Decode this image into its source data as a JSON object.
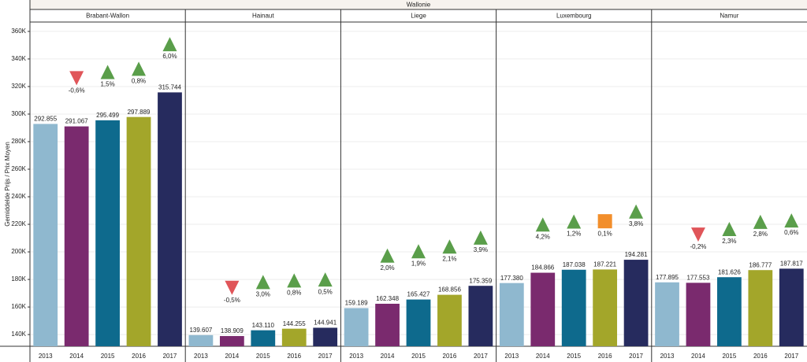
{
  "chart_data": {
    "type": "bar",
    "title": "Wallonie",
    "y_label": "Gemiddelde Prijs / Prix Moyen",
    "ylim": [
      131500,
      366800
    ],
    "yticks": [
      {
        "value": 140000,
        "label": "140K"
      },
      {
        "value": 160000,
        "label": "160K"
      },
      {
        "value": 180000,
        "label": "180K"
      },
      {
        "value": 200000,
        "label": "200K"
      },
      {
        "value": 220000,
        "label": "220K"
      },
      {
        "value": 240000,
        "label": "240K"
      },
      {
        "value": 260000,
        "label": "260K"
      },
      {
        "value": 280000,
        "label": "280K"
      },
      {
        "value": 300000,
        "label": "300K"
      },
      {
        "value": 320000,
        "label": "320K"
      },
      {
        "value": 340000,
        "label": "340K"
      },
      {
        "value": 360000,
        "label": "360K"
      }
    ],
    "grid": true,
    "categories": [
      "2013",
      "2014",
      "2015",
      "2016",
      "2017"
    ],
    "colors": [
      "#8fb8cf",
      "#7a2a6e",
      "#0e6a8d",
      "#a3a62a",
      "#262b5e"
    ],
    "marker_colors": {
      "up": "#5a9e4a",
      "down": "#e05559",
      "flat": "#f28e2b"
    },
    "panels": [
      {
        "name": "Brabant-Wallon",
        "values": [
          292855,
          291067,
          295499,
          297889,
          315744
        ],
        "value_labels": [
          "292.855",
          "291.067",
          "295.499",
          "297.889",
          "315.744"
        ],
        "changes": [
          null,
          -0.6,
          1.5,
          0.8,
          6.0
        ],
        "change_labels": [
          null,
          "-0,6%",
          "1,5%",
          "0,8%",
          "6,0%"
        ],
        "change_shapes": [
          null,
          "down",
          "up",
          "up",
          "up"
        ]
      },
      {
        "name": "Hainaut",
        "values": [
          139607,
          138909,
          143110,
          144255,
          144941
        ],
        "value_labels": [
          "139.607",
          "138.909",
          "143.110",
          "144.255",
          "144.941"
        ],
        "changes": [
          null,
          -0.5,
          3.0,
          0.8,
          0.5
        ],
        "change_labels": [
          null,
          "-0,5%",
          "3,0%",
          "0,8%",
          "0,5%"
        ],
        "change_shapes": [
          null,
          "down",
          "up",
          "up",
          "up"
        ]
      },
      {
        "name": "Liege",
        "values": [
          159189,
          162348,
          165427,
          168856,
          175359
        ],
        "value_labels": [
          "159.189",
          "162.348",
          "165.427",
          "168.856",
          "175.359"
        ],
        "changes": [
          null,
          2.0,
          1.9,
          2.1,
          3.9
        ],
        "change_labels": [
          null,
          "2,0%",
          "1,9%",
          "2,1%",
          "3,9%"
        ],
        "change_shapes": [
          null,
          "up",
          "up",
          "up",
          "up"
        ]
      },
      {
        "name": "Luxembourg",
        "values": [
          177380,
          184866,
          187038,
          187221,
          194281
        ],
        "value_labels": [
          "177.380",
          "184.866",
          "187.038",
          "187.221",
          "194.281"
        ],
        "changes": [
          null,
          4.2,
          1.2,
          0.1,
          3.8
        ],
        "change_labels": [
          null,
          "4,2%",
          "1,2%",
          "0,1%",
          "3,8%"
        ],
        "change_shapes": [
          null,
          "up",
          "up",
          "flat",
          "up"
        ]
      },
      {
        "name": "Namur",
        "values": [
          177895,
          177553,
          181626,
          186777,
          187817
        ],
        "value_labels": [
          "177.895",
          "177.553",
          "181.626",
          "186.777",
          "187.817"
        ],
        "changes": [
          null,
          -0.2,
          2.3,
          2.8,
          0.6
        ],
        "change_labels": [
          null,
          "-0,2%",
          "2,3%",
          "2,8%",
          "0,6%"
        ],
        "change_shapes": [
          null,
          "down",
          "up",
          "up",
          "up"
        ]
      }
    ]
  }
}
